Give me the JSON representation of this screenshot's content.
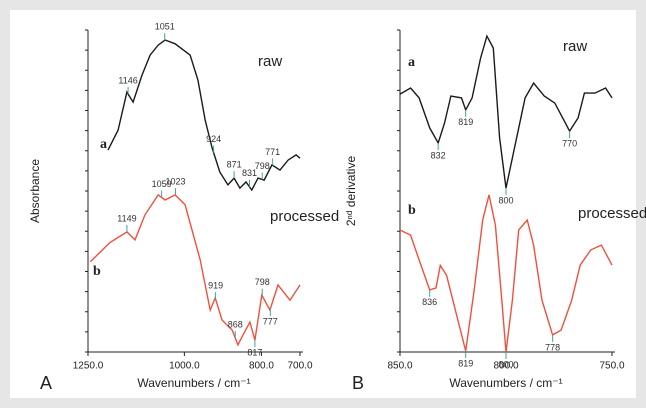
{
  "chart_data": [
    {
      "type": "line",
      "panel": "A",
      "ylabel": "Absorbance",
      "xlabel": "Wavenumbers / cm⁻¹",
      "xlim": [
        1250,
        700
      ],
      "ylim": [
        0,
        10
      ],
      "xticks": [
        {
          "value": 1250,
          "label": "1250.0"
        },
        {
          "value": 1000,
          "label": "1000.0"
        },
        {
          "value": 800,
          "label": "800.0"
        },
        {
          "value": 700,
          "label": "700.0"
        }
      ],
      "series": [
        {
          "name": "raw",
          "label": "a",
          "color": "#1a1a1a",
          "x": [
            1198,
            1172,
            1149,
            1133,
            1110,
            1089,
            1068,
            1050,
            1024,
            985,
            965,
            946,
            928,
            908,
            887,
            871,
            856,
            840,
            825,
            809,
            793,
            773,
            752,
            731,
            710,
            700
          ],
          "values": [
            6.27,
            6.89,
            8.07,
            7.76,
            8.6,
            9.22,
            9.53,
            9.69,
            9.57,
            9.22,
            8.45,
            7.2,
            6.34,
            5.59,
            5.19,
            5.4,
            5.09,
            5.28,
            5.03,
            5.4,
            5.34,
            5.81,
            5.65,
            5.96,
            6.12,
            6.02
          ],
          "peaks": [
            1146,
            1051,
            924,
            871,
            831,
            798,
            771
          ]
        },
        {
          "name": "processed",
          "label": "b",
          "color": "#f0503c",
          "x": [
            1244,
            1193,
            1149,
            1128,
            1102,
            1068,
            1050,
            1024,
            998,
            959,
            933,
            920,
            902,
            876,
            861,
            848,
            830,
            817,
            799,
            778,
            757,
            726,
            700
          ],
          "values": [
            2.8,
            3.4,
            3.73,
            3.48,
            4.26,
            4.88,
            4.72,
            4.88,
            4.57,
            2.86,
            1.3,
            1.68,
            0.99,
            0.68,
            0.22,
            0.53,
            0.93,
            0.37,
            1.77,
            1.3,
            2.08,
            1.61,
            2.08
          ],
          "peaks": [
            1149,
            1059,
            1023,
            919,
            868,
            817,
            798,
            777
          ]
        }
      ]
    },
    {
      "type": "line",
      "panel": "B",
      "ylabel": "2ⁿᵈ derivative",
      "xlabel": "Wavenumbers / cm⁻¹",
      "xlim": [
        850,
        750
      ],
      "ylim": [
        0,
        10
      ],
      "xticks": [
        {
          "value": 850,
          "label": "850.0"
        },
        {
          "value": 800,
          "label": "800.0"
        },
        {
          "value": 750,
          "label": "750.0"
        }
      ],
      "series": [
        {
          "name": "raw",
          "label": "a",
          "color": "#1a1a1a",
          "x": [
            850,
            845,
            841,
            836,
            832,
            829,
            826,
            821,
            819,
            816,
            812,
            809,
            806,
            803,
            800,
            796,
            791,
            787,
            782,
            777,
            772,
            770,
            766,
            763,
            758,
            753,
            750
          ],
          "values": [
            8.01,
            8.2,
            7.89,
            6.96,
            6.49,
            7.11,
            7.95,
            7.89,
            7.52,
            7.89,
            9.13,
            9.81,
            9.44,
            6.65,
            5.09,
            6.34,
            7.89,
            8.35,
            7.95,
            7.73,
            7.11,
            6.86,
            7.27,
            8.04,
            8.04,
            8.2,
            7.89
          ],
          "peaks": [
            832,
            819,
            800,
            770
          ]
        },
        {
          "name": "processed",
          "label": "b",
          "color": "#f0503c",
          "x": [
            850,
            845,
            841,
            836,
            833,
            831,
            828,
            819,
            815,
            811,
            808,
            805,
            802,
            800,
            797,
            794,
            790,
            787,
            783,
            778,
            774,
            769,
            765,
            760,
            755,
            750
          ],
          "values": [
            3.79,
            3.63,
            2.86,
            1.93,
            1.99,
            2.69,
            2.38,
            0.03,
            1.93,
            4.1,
            4.88,
            3.94,
            1.61,
            0.0,
            1.61,
            3.79,
            4.1,
            3.32,
            1.61,
            0.53,
            0.68,
            1.61,
            2.7,
            3.17,
            3.32,
            2.7
          ],
          "peaks": [
            836,
            819,
            800,
            778
          ]
        }
      ]
    }
  ]
}
